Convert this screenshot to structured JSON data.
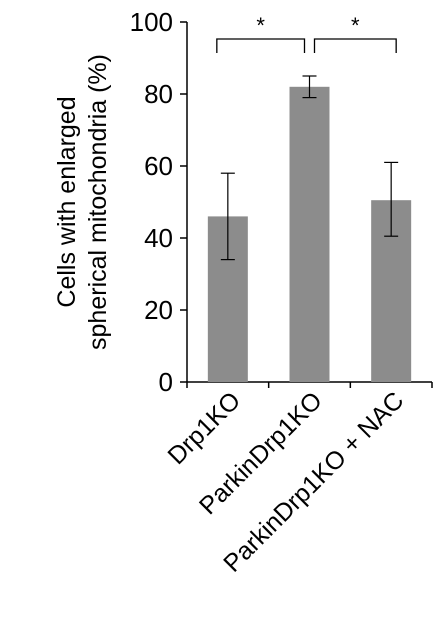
{
  "chart_data": {
    "type": "bar",
    "categories": [
      "Drp1KO",
      "ParkinDrp1KO",
      "ParkinDrp1KO + NAC"
    ],
    "values": [
      46,
      82,
      50.5
    ],
    "error_low": [
      34,
      79,
      40.5
    ],
    "error_high": [
      58,
      85,
      61
    ],
    "ylabel_lines": [
      "Cells with enlarged",
      "spherical mitochondria (%)"
    ],
    "ylim": [
      0,
      100
    ],
    "yticks": [
      {
        "value": 0,
        "label": "0"
      },
      {
        "value": 20,
        "label": "20"
      },
      {
        "value": 40,
        "label": "40"
      },
      {
        "value": 60,
        "label": "60"
      },
      {
        "value": 80,
        "label": "80"
      },
      {
        "value": 100,
        "label": "100"
      }
    ],
    "significance": [
      {
        "from": 0,
        "to": 1,
        "label": "*"
      },
      {
        "from": 1,
        "to": 2,
        "label": "*"
      }
    ],
    "bar_color": "#8c8c8c",
    "axis_color": "#000000",
    "grid": false,
    "legend": "none"
  }
}
